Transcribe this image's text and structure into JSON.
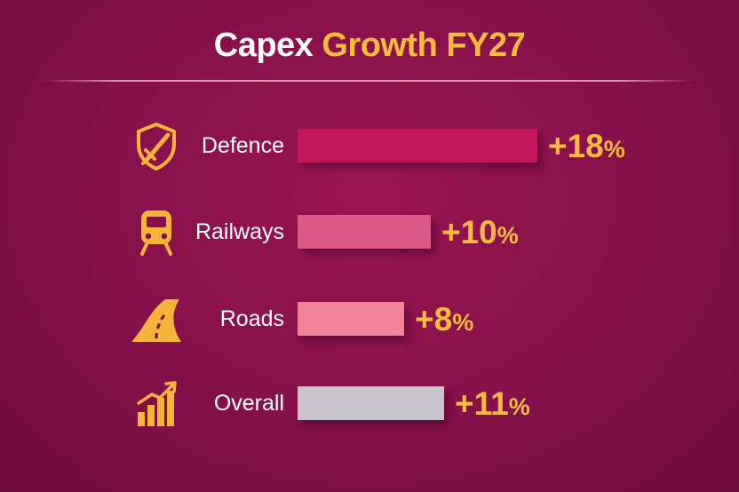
{
  "title": {
    "part1": "Capex",
    "part2": "Growth FY27"
  },
  "colors": {
    "accent": "#f6bd3c",
    "icon": "#f2b53a",
    "background": "#86104a"
  },
  "chart_data": {
    "type": "bar",
    "orientation": "horizontal",
    "categories": [
      "Defence",
      "Railways",
      "Roads",
      "Overall"
    ],
    "values": [
      18,
      10,
      8,
      11
    ],
    "value_labels": [
      {
        "number": "+18",
        "unit": "%"
      },
      {
        "number": "+10",
        "unit": "%"
      },
      {
        "number": "+8",
        "unit": "%"
      },
      {
        "number": "+11",
        "unit": "%"
      }
    ],
    "bar_colors": [
      "#c4165a",
      "#dc5886",
      "#f18298",
      "#c8c4cc"
    ],
    "icons": [
      "shield-sword-icon",
      "train-icon",
      "road-icon",
      "growth-chart-icon"
    ],
    "title": "Capex Growth FY27",
    "grid": false,
    "legend": "none"
  }
}
